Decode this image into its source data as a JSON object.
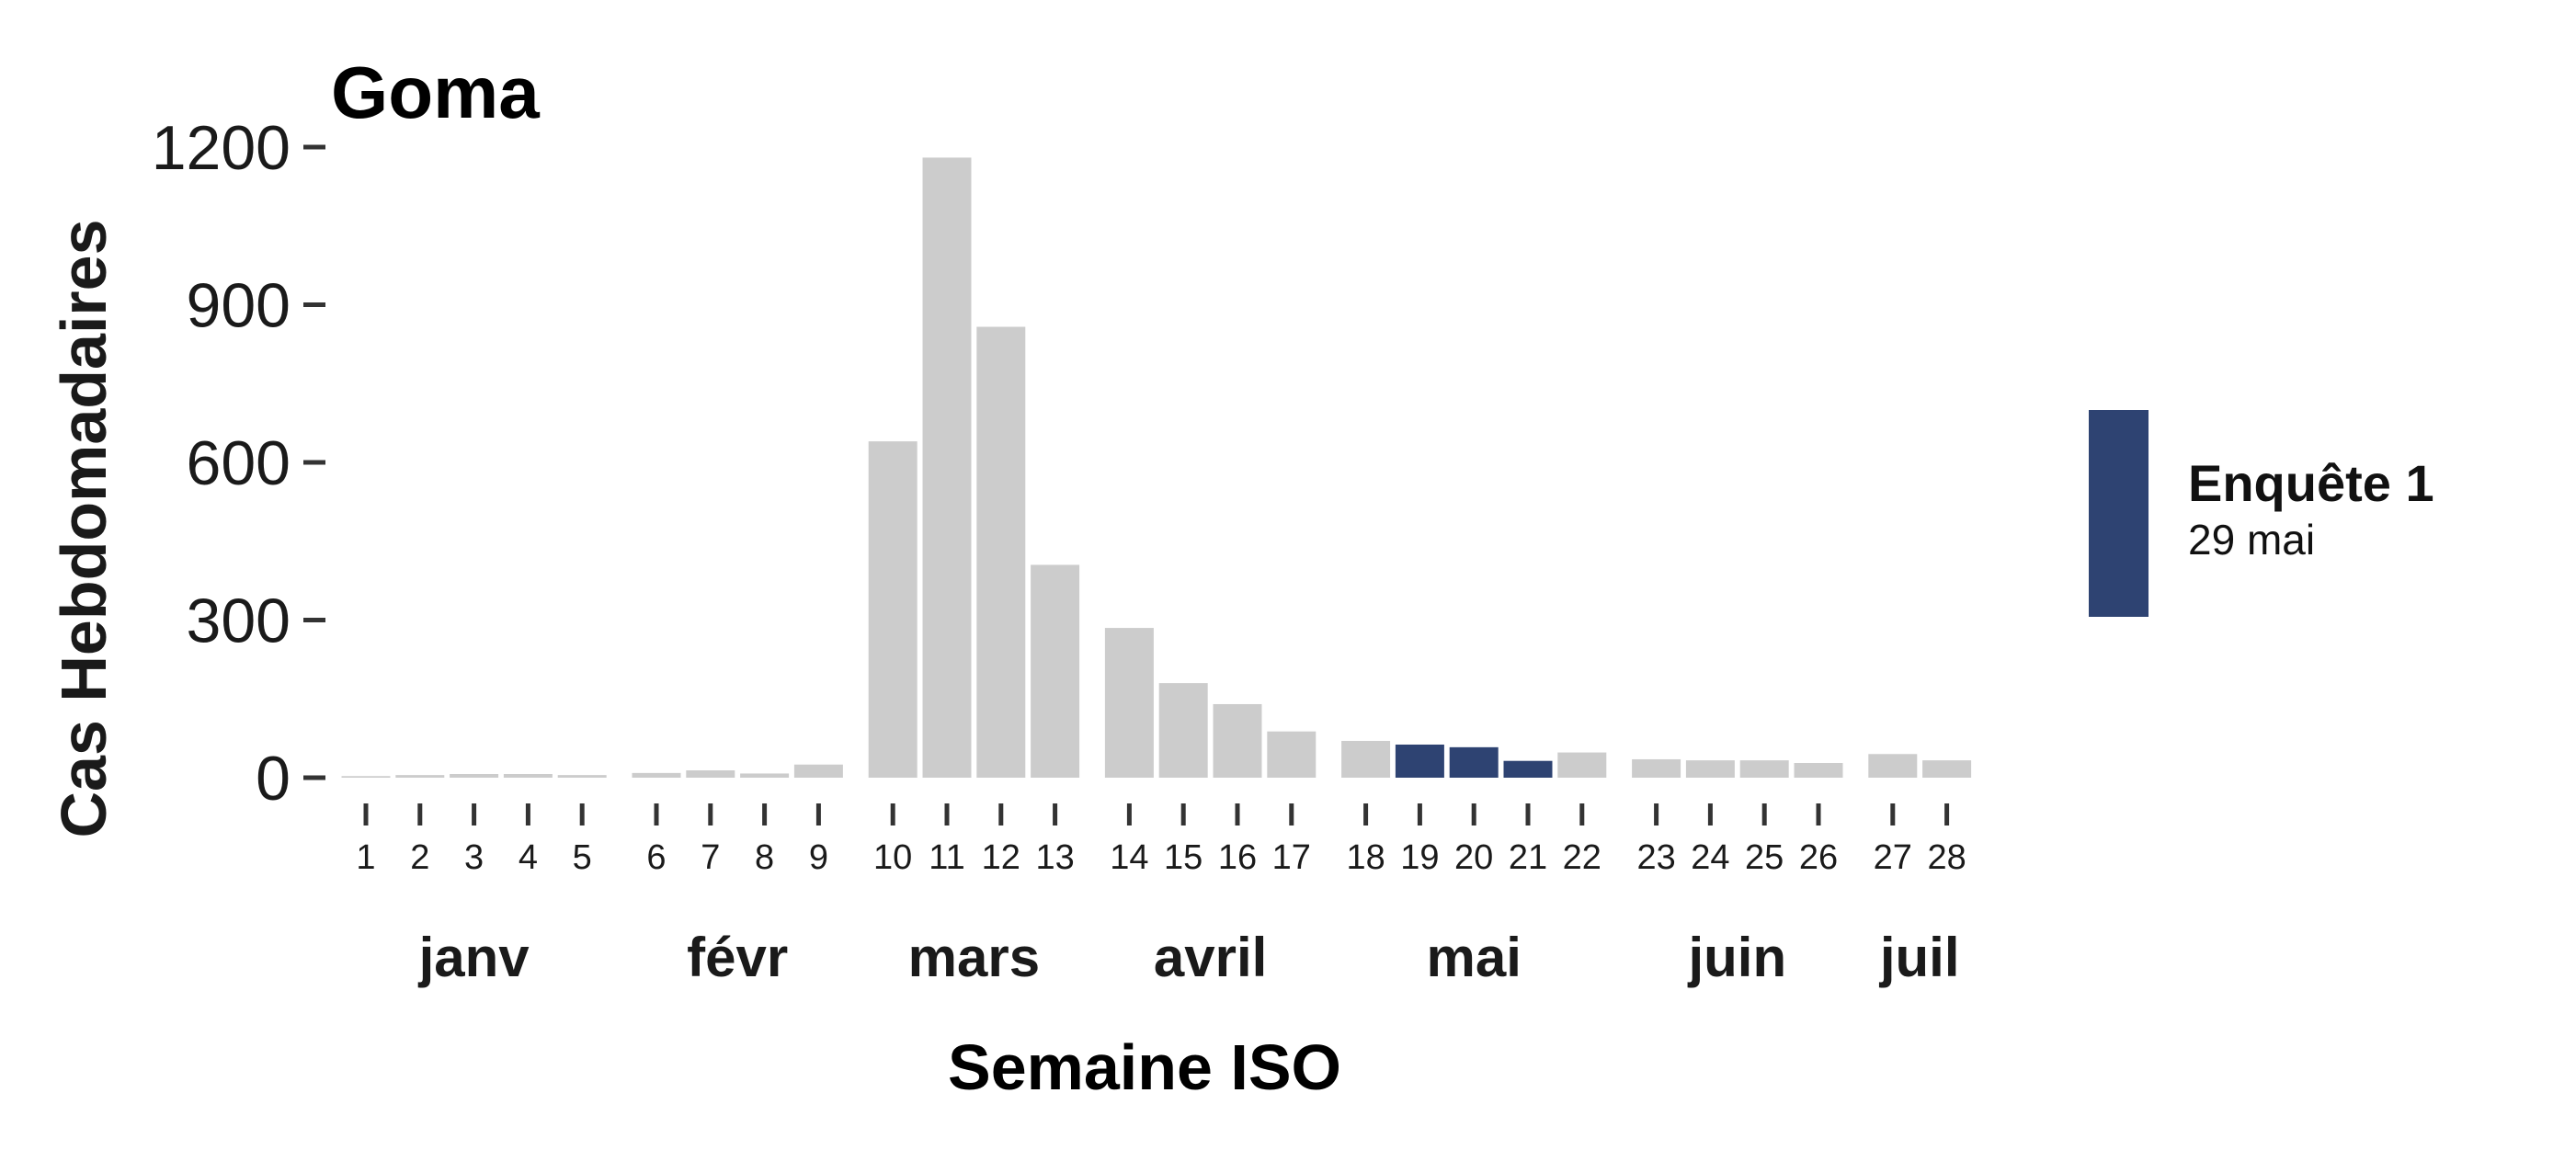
{
  "chart_data": {
    "type": "bar",
    "title": "Goma",
    "xlabel": "Semaine ISO",
    "ylabel": "Cas Hebdomadaires",
    "ylim": [
      0,
      1200
    ],
    "yticks": [
      0,
      300,
      600,
      900,
      1200
    ],
    "grid": false,
    "colors": {
      "default": "#cccccc",
      "highlight": "#2e4372",
      "axis": "#333333"
    },
    "x": [
      1,
      2,
      3,
      4,
      5,
      6,
      7,
      8,
      9,
      10,
      11,
      12,
      13,
      14,
      15,
      16,
      17,
      18,
      19,
      20,
      21,
      22,
      23,
      24,
      25,
      26,
      27,
      28
    ],
    "x_labels": [
      "1",
      "2",
      "3",
      "4",
      "5",
      "6",
      "7",
      "8",
      "9",
      "10",
      "11",
      "12",
      "13",
      "14",
      "15",
      "16",
      "17",
      "18",
      "19",
      "20",
      "21",
      "22",
      "23",
      "24",
      "25",
      "26",
      "27",
      "28"
    ],
    "values": [
      3,
      5,
      7,
      7,
      5,
      9,
      14,
      8,
      25,
      640,
      1180,
      858,
      405,
      285,
      180,
      140,
      88,
      70,
      63,
      58,
      32,
      48,
      35,
      33,
      33,
      28,
      45,
      33
    ],
    "highlight_weeks": [
      19,
      20,
      21
    ],
    "months": [
      {
        "label": "janv",
        "weeks": [
          1,
          5
        ]
      },
      {
        "label": "févr",
        "weeks": [
          6,
          9
        ]
      },
      {
        "label": "mars",
        "weeks": [
          10,
          13
        ]
      },
      {
        "label": "avril",
        "weeks": [
          14,
          17
        ]
      },
      {
        "label": "mai",
        "weeks": [
          18,
          22
        ]
      },
      {
        "label": "juin",
        "weeks": [
          23,
          26
        ]
      },
      {
        "label": "juil",
        "weeks": [
          27,
          28
        ]
      }
    ],
    "legend": {
      "placement": "right",
      "entries": [
        {
          "label": "Enquête 1",
          "sublabel": "29 mai",
          "color": "#2e4372"
        }
      ]
    }
  }
}
